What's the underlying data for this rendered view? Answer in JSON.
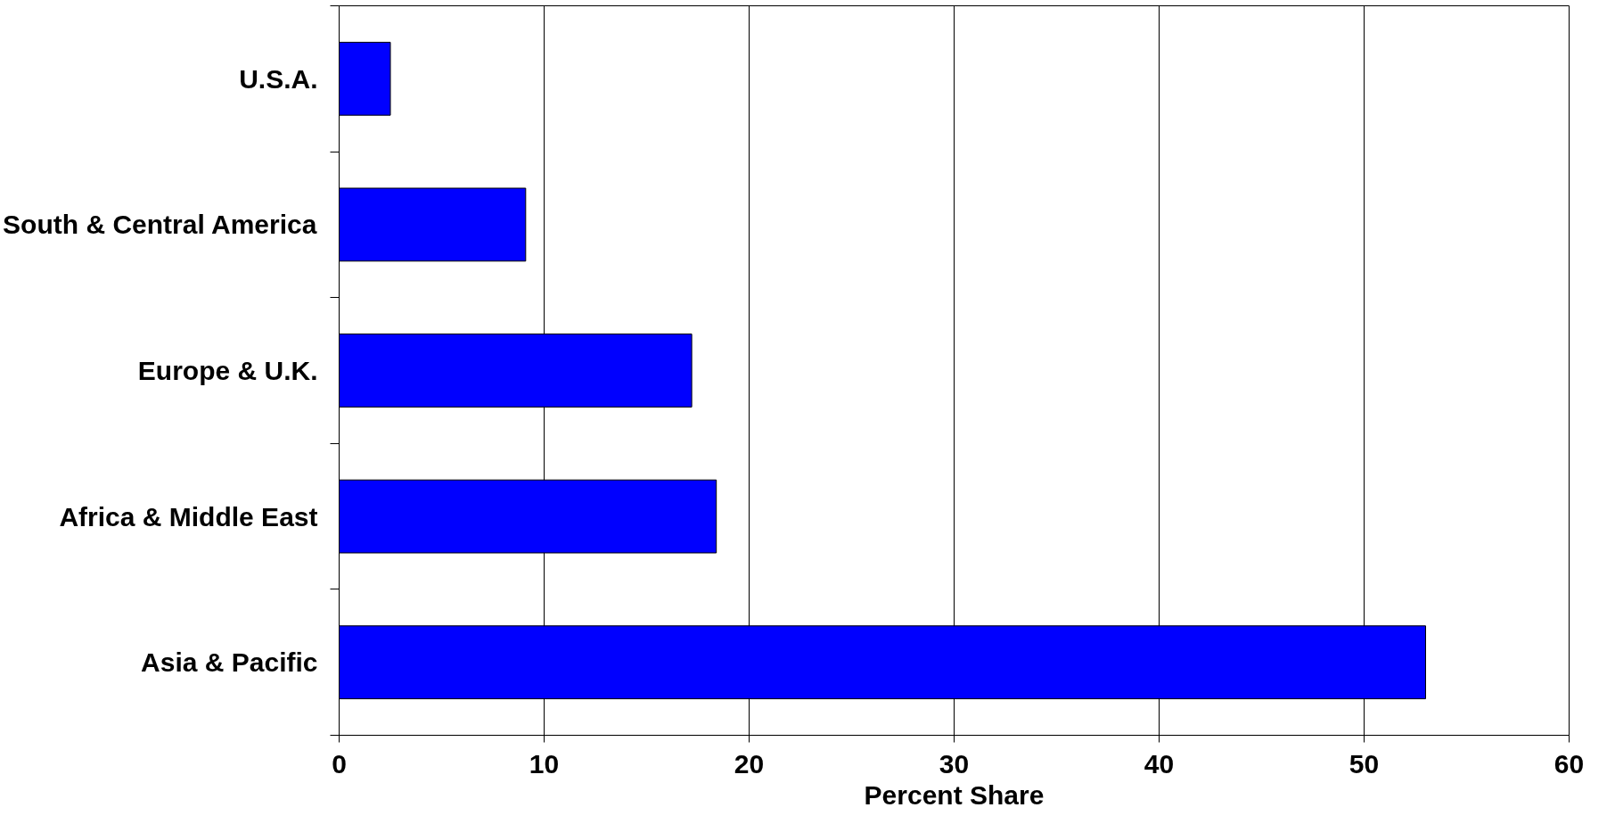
{
  "chart_data": {
    "type": "bar",
    "orientation": "horizontal",
    "categories": [
      "U.S.A.",
      "South & Central America",
      "Europe & U.K.",
      "Africa & Middle East",
      "Asia & Pacific"
    ],
    "values": [
      2.5,
      9.1,
      17.2,
      18.4,
      53.0
    ],
    "color": "#0000ff",
    "xlim": [
      0,
      60
    ],
    "xticks": [
      0,
      10,
      20,
      30,
      40,
      50,
      60
    ],
    "xlabel": "Percent Share",
    "grid": "x"
  }
}
